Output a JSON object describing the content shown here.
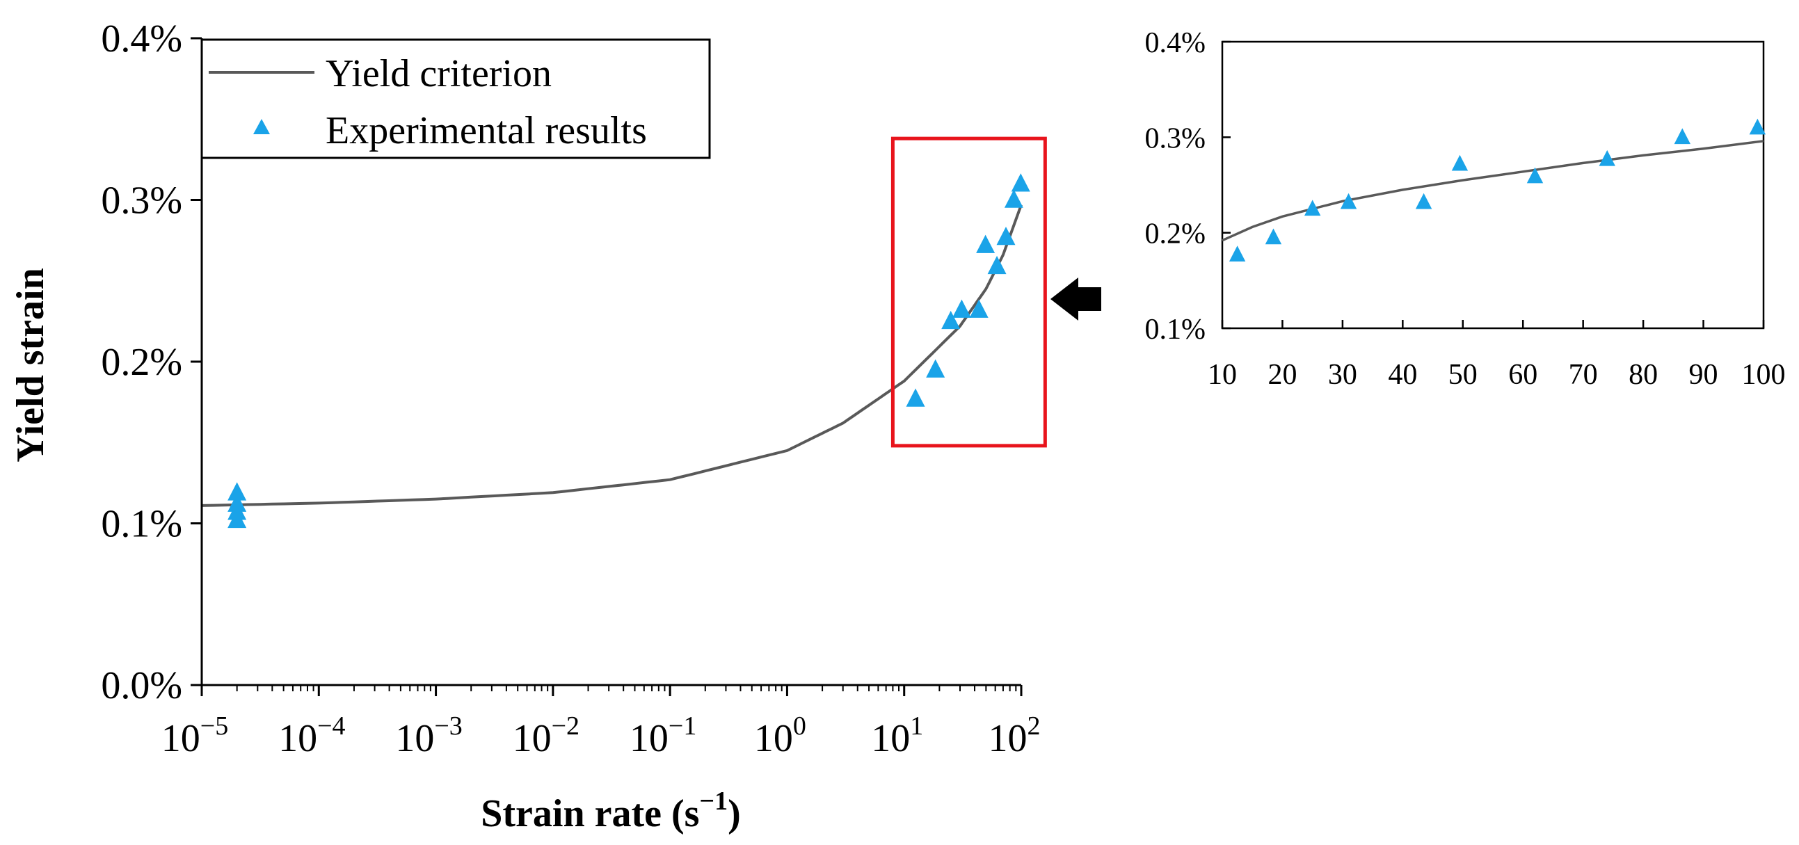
{
  "colors": {
    "curve": "#595959",
    "marker": "#1aa3e8",
    "highlight": "#e8141c",
    "axis": "#000000",
    "arrow": "#000000"
  },
  "chart_data": [
    {
      "id": "main",
      "type": "scatter",
      "xscale": "log",
      "xlim": [
        1e-05,
        100
      ],
      "ylim": [
        0.0,
        0.4
      ],
      "xlabel": "Strain rate (s",
      "xlabel_sup": "−1",
      "xlabel_close": ")",
      "ylabel": "Yield strain",
      "yticks": [
        {
          "value": 0.0,
          "label": "0.0%"
        },
        {
          "value": 0.1,
          "label": "0.1%"
        },
        {
          "value": 0.2,
          "label": "0.2%"
        },
        {
          "value": 0.3,
          "label": "0.3%"
        },
        {
          "value": 0.4,
          "label": "0.4%"
        }
      ],
      "xticks": [
        {
          "value": 1e-05,
          "base": "10",
          "exp": "−5"
        },
        {
          "value": 0.0001,
          "base": "10",
          "exp": "−4"
        },
        {
          "value": 0.001,
          "base": "10",
          "exp": "−3"
        },
        {
          "value": 0.01,
          "base": "10",
          "exp": "−2"
        },
        {
          "value": 0.1,
          "base": "10",
          "exp": "−1"
        },
        {
          "value": 1,
          "base": "10",
          "exp": "0"
        },
        {
          "value": 10,
          "base": "10",
          "exp": "1"
        },
        {
          "value": 100,
          "base": "10",
          "exp": "2"
        }
      ],
      "legend": {
        "position": "top-left",
        "items": [
          {
            "label": "Yield criterion",
            "kind": "line"
          },
          {
            "label": "Experimental results",
            "kind": "marker"
          }
        ]
      },
      "series": [
        {
          "name": "Yield criterion",
          "kind": "line",
          "points": [
            [
              1e-05,
              0.111
            ],
            [
              0.0001,
              0.1125
            ],
            [
              0.001,
              0.115
            ],
            [
              0.01,
              0.119
            ],
            [
              0.1,
              0.127
            ],
            [
              1,
              0.145
            ],
            [
              3,
              0.162
            ],
            [
              10,
              0.188
            ],
            [
              30,
              0.222
            ],
            [
              50,
              0.245
            ],
            [
              70,
              0.266
            ],
            [
              100,
              0.297
            ]
          ]
        },
        {
          "name": "Experimental results",
          "kind": "marker",
          "points": [
            [
              2e-05,
              0.102
            ],
            [
              2e-05,
              0.107
            ],
            [
              2e-05,
              0.112
            ],
            [
              2e-05,
              0.119
            ],
            [
              12.5,
              0.177
            ],
            [
              18.5,
              0.195
            ],
            [
              25,
              0.225
            ],
            [
              31,
              0.232
            ],
            [
              43.5,
              0.232
            ],
            [
              49.5,
              0.272
            ],
            [
              62,
              0.259
            ],
            [
              74,
              0.277
            ],
            [
              86.5,
              0.3
            ],
            [
              99,
              0.31
            ]
          ]
        }
      ],
      "highlight_box": {
        "x_range": [
          8,
          160
        ],
        "y_range": [
          0.148,
          0.338
        ]
      }
    },
    {
      "id": "inset",
      "type": "scatter",
      "xscale": "linear",
      "xlim": [
        10,
        100
      ],
      "ylim": [
        0.1,
        0.4
      ],
      "yticks": [
        {
          "value": 0.1,
          "label": "0.1%"
        },
        {
          "value": 0.2,
          "label": "0.2%"
        },
        {
          "value": 0.3,
          "label": "0.3%"
        },
        {
          "value": 0.4,
          "label": "0.4%"
        }
      ],
      "xticks": [
        {
          "value": 10,
          "label": "10"
        },
        {
          "value": 20,
          "label": "20"
        },
        {
          "value": 30,
          "label": "30"
        },
        {
          "value": 40,
          "label": "40"
        },
        {
          "value": 50,
          "label": "50"
        },
        {
          "value": 60,
          "label": "60"
        },
        {
          "value": 70,
          "label": "70"
        },
        {
          "value": 80,
          "label": "80"
        },
        {
          "value": 90,
          "label": "90"
        },
        {
          "value": 100,
          "label": "100"
        }
      ],
      "series": [
        {
          "name": "Yield criterion",
          "kind": "line",
          "points": [
            [
              10,
              0.192
            ],
            [
              15,
              0.206
            ],
            [
              20,
              0.217
            ],
            [
              30,
              0.233
            ],
            [
              40,
              0.245
            ],
            [
              50,
              0.255
            ],
            [
              60,
              0.264
            ],
            [
              70,
              0.273
            ],
            [
              80,
              0.281
            ],
            [
              90,
              0.288
            ],
            [
              100,
              0.296
            ]
          ]
        },
        {
          "name": "Experimental results",
          "kind": "marker",
          "points": [
            [
              12.5,
              0.177
            ],
            [
              18.5,
              0.195
            ],
            [
              25,
              0.225
            ],
            [
              31,
              0.232
            ],
            [
              43.5,
              0.232
            ],
            [
              49.5,
              0.272
            ],
            [
              62,
              0.259
            ],
            [
              74,
              0.277
            ],
            [
              86.5,
              0.3
            ],
            [
              99,
              0.31
            ]
          ]
        }
      ]
    }
  ]
}
